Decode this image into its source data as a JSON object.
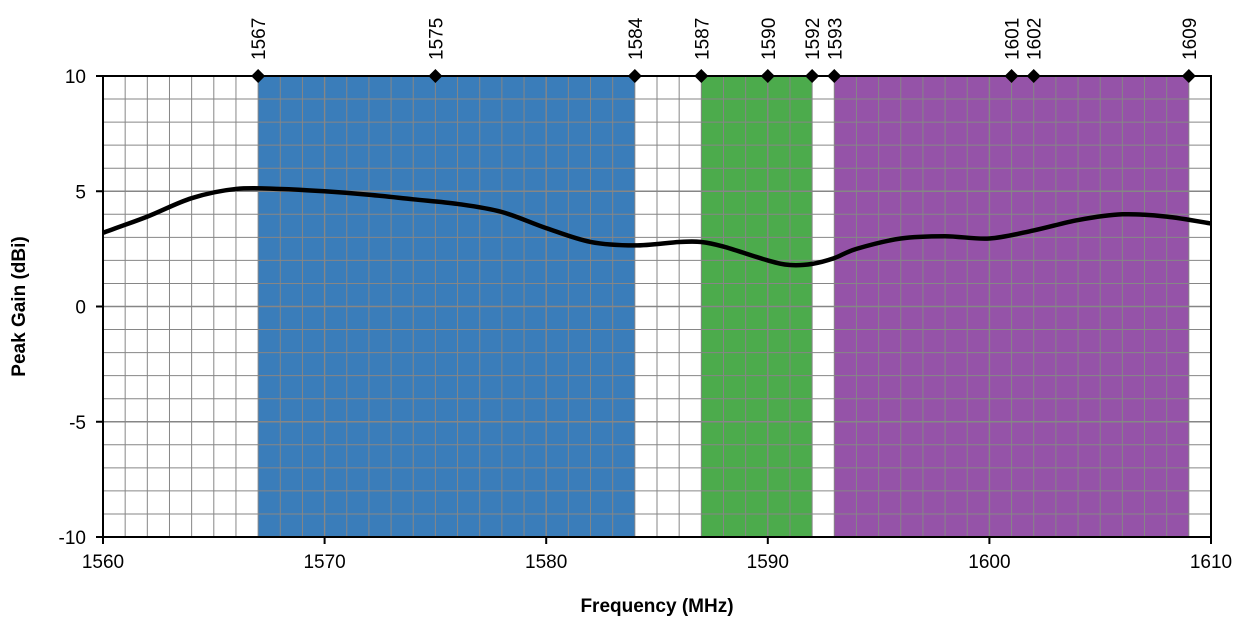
{
  "chart_data": {
    "type": "line",
    "title": "",
    "xlabel": "Frequency (MHz)",
    "ylabel": "Peak Gain (dBi)",
    "xlim": [
      1560,
      1610
    ],
    "ylim": [
      -10,
      10
    ],
    "x_ticks": [
      1560,
      1570,
      1580,
      1590,
      1600,
      1610
    ],
    "y_ticks": [
      -10,
      -5,
      0,
      5,
      10
    ],
    "x_minor_step": 1,
    "y_minor_step": 1,
    "grid": true,
    "bands": [
      {
        "start": 1567,
        "end": 1584,
        "color": "#3a7dba"
      },
      {
        "start": 1587,
        "end": 1592,
        "color": "#4cab4c"
      },
      {
        "start": 1593,
        "end": 1609,
        "color": "#9553a8"
      }
    ],
    "markers": [
      {
        "x": 1567,
        "label": "1567"
      },
      {
        "x": 1575,
        "label": "1575"
      },
      {
        "x": 1584,
        "label": "1584"
      },
      {
        "x": 1587,
        "label": "1587"
      },
      {
        "x": 1590,
        "label": "1590"
      },
      {
        "x": 1592,
        "label": "1592"
      },
      {
        "x": 1593,
        "label": "1593"
      },
      {
        "x": 1601,
        "label": "1601"
      },
      {
        "x": 1602,
        "label": "1602"
      },
      {
        "x": 1609,
        "label": "1609"
      }
    ],
    "series": [
      {
        "color": "#000000",
        "x": [
          1560,
          1562,
          1564,
          1566,
          1568,
          1570,
          1572,
          1574,
          1576,
          1578,
          1580,
          1582,
          1584,
          1586,
          1587,
          1588,
          1590,
          1591,
          1592,
          1593,
          1594,
          1596,
          1598,
          1600,
          1602,
          1604,
          1606,
          1608,
          1610
        ],
        "y": [
          3.2,
          3.9,
          4.7,
          5.1,
          5.1,
          5.0,
          4.85,
          4.65,
          4.45,
          4.1,
          3.4,
          2.8,
          2.65,
          2.8,
          2.8,
          2.6,
          2.0,
          1.8,
          1.85,
          2.1,
          2.5,
          2.95,
          3.05,
          2.95,
          3.3,
          3.75,
          4.0,
          3.9,
          3.6
        ]
      }
    ]
  }
}
